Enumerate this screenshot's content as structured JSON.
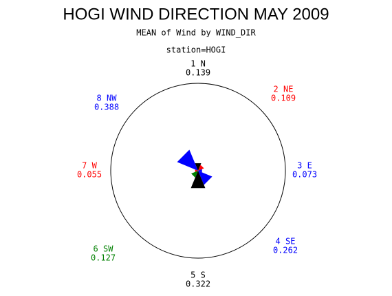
{
  "chart_data": {
    "type": "rose",
    "title": "HOGI WIND DIRECTION MAY 2009",
    "subtitle": "MEAN of Wind by WIND_DIR",
    "station": "station=HOGI",
    "categories": [
      "1 N",
      "2 NE",
      "3 E",
      "4 SE",
      "5 S",
      "6 SW",
      "7 W",
      "8 NW"
    ],
    "values": [
      0.139,
      0.109,
      0.073,
      0.262,
      0.322,
      0.127,
      0.055,
      0.388
    ],
    "colors": [
      "#000000",
      "#ff0000",
      "#0000ff",
      "#0000ff",
      "#000000",
      "#008000",
      "#ff0000",
      "#0000ff"
    ]
  }
}
